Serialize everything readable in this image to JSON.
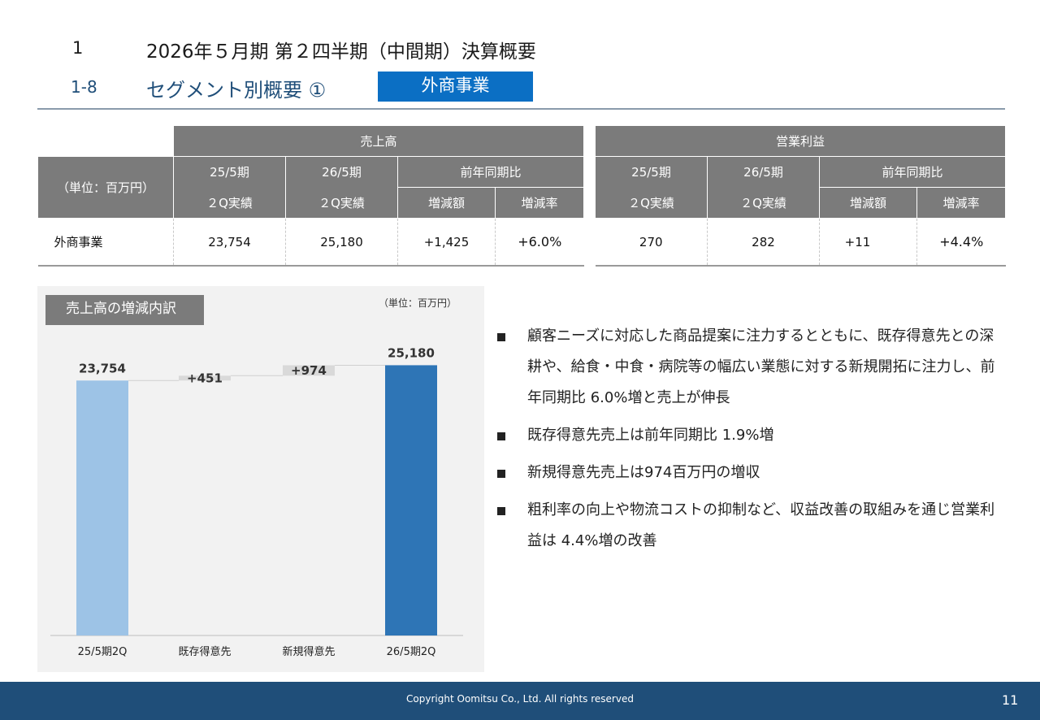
{
  "header": {
    "section_num": "1",
    "section_title": "2026年５月期 第２四半期（中間期）決算概要",
    "sub_num": "1-8",
    "sub_title": "セグメント別概要 ①",
    "segment_badge": "外商事業"
  },
  "table": {
    "unit_label": "（単位：百万円）",
    "groups": [
      {
        "title": "売上高",
        "col_prev_top": "25/5期",
        "col_prev_bottom": "２Q実績",
        "col_curr_top": "26/5期",
        "col_curr_bottom": "２Q実績",
        "col_yoy": "前年同期比",
        "col_diff": "増減額",
        "col_rate": "増減率",
        "values": {
          "prev": "23,754",
          "curr": "25,180",
          "diff": "+1,425",
          "rate": "+6.0%"
        }
      },
      {
        "title": "営業利益",
        "col_prev_top": "25/5期",
        "col_prev_bottom": "２Q実績",
        "col_curr_top": "26/5期",
        "col_curr_bottom": "２Q実績",
        "col_yoy": "前年同期比",
        "col_diff": "増減額",
        "col_rate": "増減率",
        "values": {
          "prev": "270",
          "curr": "282",
          "diff": "+11",
          "rate": "+4.4%"
        }
      }
    ],
    "row_label": "外商事業"
  },
  "chart_panel": {
    "title": "売上高の増減内訳",
    "unit_note": "（単位：百万円）"
  },
  "chart_data": {
    "type": "bar",
    "subtype": "waterfall",
    "categories": [
      "25/5期2Q",
      "既存得意先",
      "新規得意先",
      "26/5期2Q"
    ],
    "values": [
      23754,
      451,
      974,
      25180
    ],
    "data_labels": [
      "23,754",
      "+451",
      "+974",
      "25,180"
    ],
    "bar_kinds": [
      "total",
      "delta",
      "delta",
      "total"
    ],
    "colors": {
      "start": "#9dc3e6",
      "delta": "#d9d9d9",
      "end": "#2e75b6"
    },
    "title": "",
    "xlabel": "",
    "ylabel": "",
    "ylim": [
      0,
      26500
    ],
    "grid": false
  },
  "bullets": [
    "顧客ニーズに対応した商品提案に注力するとともに、既存得意先との深耕や、給食・中食・病院等の幅広い業態に対する新規開拓に注力し、前年同期比 6.0%増と売上が伸長",
    "既存得意先売上は前年同期比 1.9%増",
    "新規得意先売上は974百万円の増収",
    "粗利率の向上や物流コストの抑制など、収益改善の取組みを通じ営業利益は 4.4%増の改善"
  ],
  "footer": {
    "copyright": "Copyright Oomitsu Co., Ltd. All rights reserved",
    "page": "11"
  }
}
